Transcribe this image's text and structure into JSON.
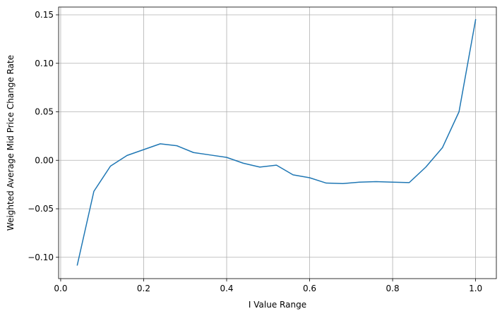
{
  "chart_data": {
    "type": "line",
    "title": "",
    "xlabel": "I Value Range",
    "ylabel": "Weighted Average Mid Price Change Rate",
    "xlim": [
      -0.005,
      1.05
    ],
    "ylim": [
      -0.122,
      0.158
    ],
    "grid": true,
    "x_ticks": [
      0.0,
      0.2,
      0.4,
      0.6,
      0.8,
      1.0
    ],
    "x_tick_labels": [
      "0.0",
      "0.2",
      "0.4",
      "0.6",
      "0.8",
      "1.0"
    ],
    "y_ticks": [
      -0.1,
      -0.05,
      0.0,
      0.05,
      0.1,
      0.15
    ],
    "y_tick_labels": [
      "−0.10",
      "−0.05",
      "0.00",
      "0.05",
      "0.10",
      "0.15"
    ],
    "line_color": "#1f77b4",
    "series": [
      {
        "x": [
          0.04,
          0.08,
          0.12,
          0.16,
          0.2,
          0.24,
          0.28,
          0.32,
          0.36,
          0.4,
          0.44,
          0.48,
          0.52,
          0.56,
          0.6,
          0.64,
          0.68,
          0.72,
          0.76,
          0.8,
          0.84,
          0.88,
          0.92,
          0.96,
          1.0
        ],
        "y": [
          -0.108,
          -0.032,
          -0.006,
          0.005,
          0.011,
          0.017,
          0.015,
          0.008,
          0.0055,
          0.003,
          -0.003,
          -0.007,
          -0.005,
          -0.015,
          -0.018,
          -0.0235,
          -0.024,
          -0.0225,
          -0.022,
          -0.0225,
          -0.023,
          -0.007,
          0.013,
          0.05,
          0.145
        ]
      }
    ]
  }
}
